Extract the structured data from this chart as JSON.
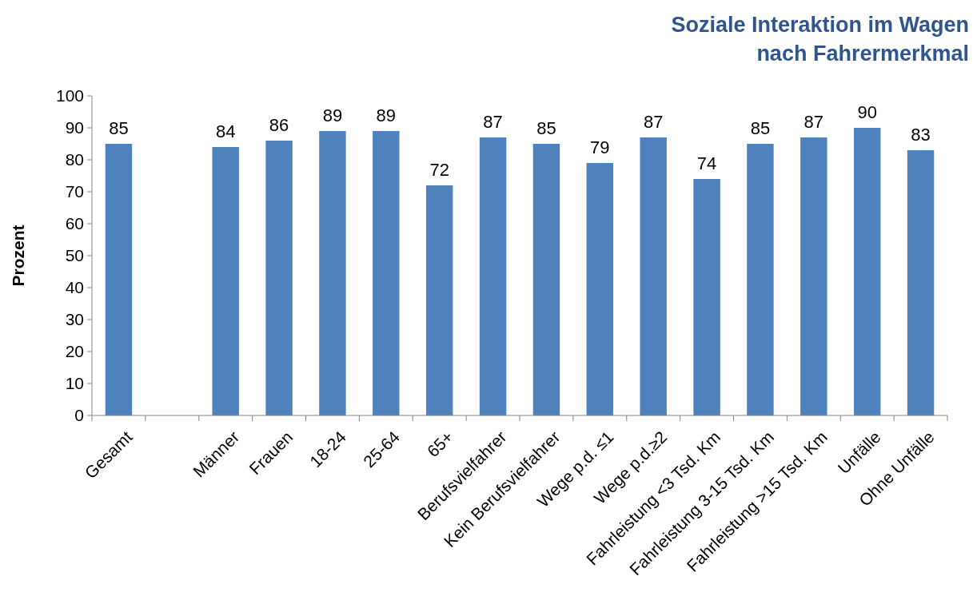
{
  "chart_data": {
    "type": "bar",
    "title": "Soziale Interaktion im Wagen\nnach Fahrermerkmal",
    "ylabel": "Prozent",
    "categories": [
      "Gesamt",
      null,
      "Männer",
      "Frauen",
      "18-24",
      "25-64",
      "65+",
      "Berufsvielfahrer",
      "Kein Berufsvielfahrer",
      "Wege p.d. ≤1",
      "Wege p.d.≥2",
      "Fahrleistung <3 Tsd. Km",
      "Fahrleistung 3-15 Tsd. Km",
      "Fahrleistung >15 Tsd. Km",
      "Unfälle",
      "Ohne Unfälle"
    ],
    "values": [
      85,
      null,
      84,
      86,
      89,
      89,
      72,
      87,
      85,
      79,
      87,
      74,
      85,
      87,
      90,
      83
    ],
    "color": "#4f81bd",
    "ylim": [
      0,
      100
    ],
    "yticks": [
      0,
      10,
      20,
      30,
      40,
      50,
      60,
      70,
      80,
      90,
      100
    ],
    "data_labels": true
  }
}
